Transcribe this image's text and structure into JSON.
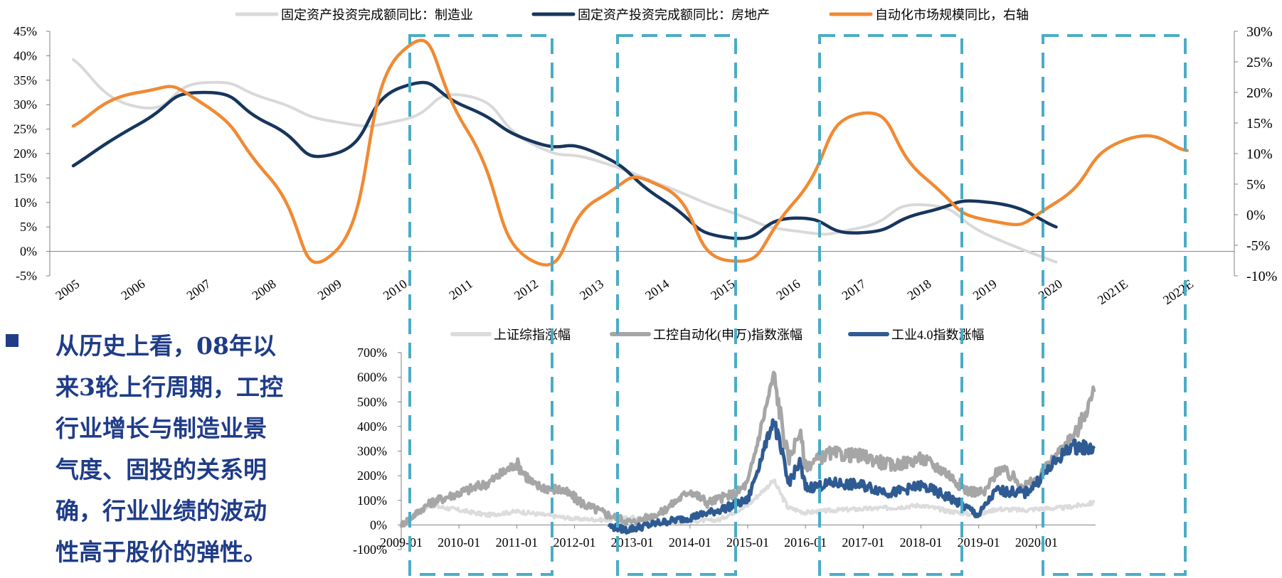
{
  "colors": {
    "manufacturing": "#d9d9d9",
    "real_estate": "#17365d",
    "automation": "#f08a33",
    "shanghai": "#dcdcdc",
    "industrial_control": "#a6a6a6",
    "industry40": "#2f5b93",
    "highlight_box": "#4bacc6",
    "note_text": "#1f3c88",
    "bullet": "#1f3c88"
  },
  "note": {
    "lines": [
      "从历史上看，08年以",
      "来3轮上行周期，工控",
      "行业增长与制造业景",
      "气度、固投的关系明",
      "确，行业业绩的波动",
      "性高于股价的弹性。"
    ]
  },
  "chart_data": [
    {
      "type": "line",
      "categories": [
        "2005",
        "2006",
        "2007",
        "2008",
        "2009",
        "2010",
        "2011",
        "2012",
        "2013",
        "2014",
        "2015",
        "2016",
        "2017",
        "2018",
        "2019",
        "2020",
        "2021E",
        "2022E"
      ],
      "left_axis": {
        "ylim": [
          -5,
          45
        ],
        "ticks": [
          "-5%",
          "0%",
          "5%",
          "10%",
          "15%",
          "20%",
          "25%",
          "30%",
          "35%",
          "40%",
          "45%"
        ]
      },
      "right_axis": {
        "ylim": [
          -10,
          30
        ],
        "ticks": [
          "-10%",
          "-5%",
          "0%",
          "5%",
          "10%",
          "15%",
          "20%",
          "25%",
          "30%"
        ]
      },
      "legend_placement": "top",
      "series": [
        {
          "name": "固定资产投资完成额同比：制造业",
          "axis": "left",
          "values": [
            39.2,
            29.5,
            34.5,
            31.0,
            26.5,
            26.8,
            31.8,
            22.0,
            18.5,
            13.5,
            8.2,
            4.2,
            4.8,
            9.5,
            3.1,
            -2.2,
            null,
            null
          ]
        },
        {
          "name": "固定资产投资完成额同比：房地产",
          "axis": "left",
          "values": [
            17.5,
            26.0,
            32.5,
            26.0,
            20.0,
            33.5,
            29.5,
            22.5,
            20.0,
            10.5,
            2.8,
            6.8,
            3.8,
            8.0,
            10.0,
            5.0,
            null,
            null
          ]
        },
        {
          "name": "自动化市场规模同比，右轴",
          "axis": "right",
          "values": [
            14.5,
            20.0,
            18.0,
            6.0,
            -6.0,
            26.5,
            14.0,
            -7.5,
            2.5,
            4.5,
            -7.5,
            2.0,
            16.5,
            6.0,
            -1.0,
            2.0,
            12.0,
            10.5
          ]
        }
      ]
    },
    {
      "type": "line",
      "x_ticks": [
        "2009-01",
        "2010-01",
        "2011-01",
        "2012-01",
        "2013-01",
        "2014-01",
        "2015-01",
        "2016-01",
        "2017-01",
        "2018-01",
        "2019-01",
        "2020-01"
      ],
      "y_ticks": [
        "-100%",
        "0%",
        "100%",
        "200%",
        "300%",
        "400%",
        "500%",
        "600%",
        "700%"
      ],
      "ylim": [
        -100,
        700
      ],
      "x_range": [
        2009.0,
        2021.0
      ],
      "legend_placement": "top",
      "series": [
        {
          "name": "上证综指涨幅",
          "points": [
            [
              2009.0,
              0
            ],
            [
              2009.5,
              80
            ],
            [
              2010.0,
              60
            ],
            [
              2010.5,
              40
            ],
            [
              2011.0,
              55
            ],
            [
              2011.5,
              40
            ],
            [
              2012.0,
              25
            ],
            [
              2012.5,
              20
            ],
            [
              2013.0,
              30
            ],
            [
              2013.5,
              10
            ],
            [
              2014.0,
              15
            ],
            [
              2014.5,
              20
            ],
            [
              2015.0,
              80
            ],
            [
              2015.45,
              180
            ],
            [
              2015.7,
              70
            ],
            [
              2016.0,
              50
            ],
            [
              2016.5,
              60
            ],
            [
              2017.0,
              65
            ],
            [
              2017.5,
              70
            ],
            [
              2018.0,
              80
            ],
            [
              2018.5,
              55
            ],
            [
              2019.0,
              40
            ],
            [
              2019.3,
              65
            ],
            [
              2019.8,
              60
            ],
            [
              2020.0,
              65
            ],
            [
              2020.5,
              70
            ],
            [
              2021.0,
              90
            ]
          ]
        },
        {
          "name": "工控自动化(申万)指数涨幅",
          "points": [
            [
              2009.0,
              0
            ],
            [
              2009.5,
              90
            ],
            [
              2010.0,
              130
            ],
            [
              2010.5,
              170
            ],
            [
              2011.0,
              250
            ],
            [
              2011.3,
              160
            ],
            [
              2011.8,
              140
            ],
            [
              2012.2,
              80
            ],
            [
              2012.6,
              40
            ],
            [
              2013.0,
              10
            ],
            [
              2013.5,
              50
            ],
            [
              2014.0,
              140
            ],
            [
              2014.3,
              90
            ],
            [
              2014.8,
              130
            ],
            [
              2015.0,
              170
            ],
            [
              2015.45,
              610
            ],
            [
              2015.7,
              260
            ],
            [
              2015.9,
              380
            ],
            [
              2016.0,
              240
            ],
            [
              2016.4,
              290
            ],
            [
              2017.0,
              280
            ],
            [
              2017.5,
              240
            ],
            [
              2018.0,
              270
            ],
            [
              2018.4,
              220
            ],
            [
              2018.8,
              140
            ],
            [
              2019.1,
              130
            ],
            [
              2019.35,
              230
            ],
            [
              2019.8,
              160
            ],
            [
              2020.0,
              180
            ],
            [
              2020.4,
              300
            ],
            [
              2020.7,
              380
            ],
            [
              2021.0,
              540
            ]
          ]
        },
        {
          "name": "工业4.0指数涨幅",
          "points": [
            [
              2012.6,
              -5
            ],
            [
              2012.9,
              -20
            ],
            [
              2013.5,
              10
            ],
            [
              2014.0,
              30
            ],
            [
              2014.5,
              60
            ],
            [
              2015.0,
              100
            ],
            [
              2015.45,
              430
            ],
            [
              2015.7,
              170
            ],
            [
              2015.9,
              250
            ],
            [
              2016.0,
              150
            ],
            [
              2016.5,
              170
            ],
            [
              2017.0,
              160
            ],
            [
              2017.5,
              130
            ],
            [
              2018.0,
              160
            ],
            [
              2018.5,
              110
            ],
            [
              2019.0,
              40
            ],
            [
              2019.3,
              140
            ],
            [
              2019.8,
              130
            ],
            [
              2020.0,
              170
            ],
            [
              2020.3,
              250
            ],
            [
              2020.6,
              320
            ],
            [
              2021.0,
              310
            ]
          ]
        }
      ]
    }
  ]
}
